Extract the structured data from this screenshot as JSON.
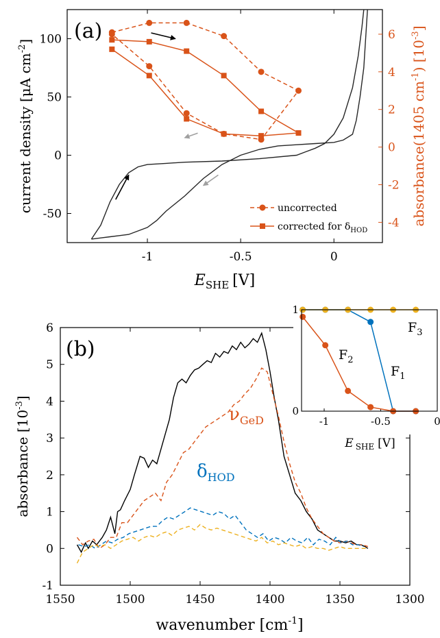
{
  "colors": {
    "axis": "#000000",
    "cv": "#262626",
    "orange": "#d95319",
    "blue": "#0072bd",
    "gold": "#edb120",
    "grey": "#a0a0a0"
  },
  "chart_data": [
    {
      "id": "a",
      "type": "line",
      "panel_label": "(a)",
      "xlabel_main": "E",
      "xlabel_sub": "SHE",
      "xlabel_unit": "[V]",
      "ylabel_left": "current density  [μA cm",
      "ylabel_left_sup": "-2",
      "ylabel_left_end": "]",
      "ylabel_right": "absorbance(1405 cm",
      "ylabel_right_sup1": "-1",
      "ylabel_right_mid": ") [10",
      "ylabel_right_sup2": "-3",
      "ylabel_right_end": "]",
      "xlim": [
        -1.43,
        0.26
      ],
      "ylim_left": [
        -75,
        125
      ],
      "ylim_right": [
        -5.077,
        7.308
      ],
      "xticks": [
        {
          "v": -1,
          "label": "-1"
        },
        {
          "v": -0.5,
          "label": "-0.5"
        },
        {
          "v": 0,
          "label": "0"
        }
      ],
      "yticks_left": [
        {
          "v": -50,
          "label": "-50"
        },
        {
          "v": 0,
          "label": "0"
        },
        {
          "v": 50,
          "label": "50"
        },
        {
          "v": 100,
          "label": "100"
        }
      ],
      "yticks_right": [
        {
          "v": -4,
          "label": "-4"
        },
        {
          "v": -2,
          "label": "-2"
        },
        {
          "v": 0,
          "label": "0"
        },
        {
          "v": 2,
          "label": "2"
        },
        {
          "v": 4,
          "label": "4"
        },
        {
          "v": 6,
          "label": "6"
        }
      ],
      "cv_curve": {
        "anodic": [
          [
            -1.3,
            -72
          ],
          [
            -1.25,
            -60
          ],
          [
            -1.2,
            -40
          ],
          [
            -1.15,
            -25
          ],
          [
            -1.1,
            -15
          ],
          [
            -1.05,
            -10
          ],
          [
            -1.0,
            -8
          ],
          [
            -0.9,
            -7
          ],
          [
            -0.8,
            -6
          ],
          [
            -0.6,
            -5
          ],
          [
            -0.4,
            -3
          ],
          [
            -0.2,
            0
          ],
          [
            -0.15,
            3
          ],
          [
            -0.1,
            6
          ],
          [
            -0.05,
            10
          ],
          [
            0.0,
            18
          ],
          [
            0.05,
            32
          ],
          [
            0.1,
            58
          ],
          [
            0.13,
            85
          ],
          [
            0.15,
            110
          ],
          [
            0.16,
            125
          ]
        ],
        "cathodic": [
          [
            0.18,
            125
          ],
          [
            0.17,
            100
          ],
          [
            0.16,
            75
          ],
          [
            0.14,
            50
          ],
          [
            0.12,
            30
          ],
          [
            0.1,
            18
          ],
          [
            0.05,
            13
          ],
          [
            0.0,
            11
          ],
          [
            -0.1,
            10
          ],
          [
            -0.2,
            9
          ],
          [
            -0.3,
            8
          ],
          [
            -0.4,
            5
          ],
          [
            -0.5,
            0
          ],
          [
            -0.6,
            -8
          ],
          [
            -0.7,
            -20
          ],
          [
            -0.8,
            -35
          ],
          [
            -0.9,
            -48
          ],
          [
            -0.95,
            -56
          ],
          [
            -1.0,
            -62
          ],
          [
            -1.05,
            -65
          ],
          [
            -1.1,
            -68
          ],
          [
            -1.15,
            -69
          ],
          [
            -1.2,
            -70
          ],
          [
            -1.25,
            -71
          ],
          [
            -1.3,
            -72
          ]
        ]
      },
      "series": [
        {
          "name": "uncorrected",
          "style": "dashed",
          "marker": "circle",
          "x": [
            -1.19,
            -0.99,
            -0.79,
            -0.59,
            -0.39,
            -0.19,
            -0.39,
            -0.59,
            -0.79,
            -0.99,
            -1.19
          ],
          "y": [
            6.1,
            6.6,
            6.6,
            5.9,
            4.0,
            3.0,
            0.4,
            0.7,
            1.8,
            4.3,
            6.0
          ]
        },
        {
          "name": "corrected for δ",
          "name_sub": "HOD",
          "style": "solid",
          "marker": "square",
          "x": [
            -1.19,
            -0.99,
            -0.79,
            -0.59,
            -0.39,
            -0.19,
            -0.39,
            -0.59,
            -0.79,
            -0.99,
            -1.19
          ],
          "y": [
            5.7,
            5.6,
            5.1,
            3.8,
            1.9,
            0.75,
            0.6,
            0.7,
            1.5,
            3.8,
            5.2
          ]
        }
      ],
      "legend_position": "bottom-right",
      "arrows": [
        {
          "color": "black",
          "from": [
            -0.98,
            105
          ],
          "to": [
            -0.85,
            100
          ]
        },
        {
          "color": "grey",
          "from": [
            -0.73,
            19
          ],
          "to": [
            -0.8,
            15
          ]
        },
        {
          "color": "black",
          "from": [
            -1.17,
            -38
          ],
          "to": [
            -1.1,
            -17
          ]
        },
        {
          "color": "grey",
          "from": [
            -0.62,
            -17
          ],
          "to": [
            -0.7,
            -26
          ]
        }
      ]
    },
    {
      "id": "b",
      "type": "line",
      "panel_label": "(b)",
      "xlabel": "wavenumber [cm",
      "xlabel_sup": "-1",
      "xlabel_end": "]",
      "ylabel": "absorbance [10",
      "ylabel_sup": "-3",
      "ylabel_end": "]",
      "xlim": [
        1550,
        1300
      ],
      "ylim": [
        -1,
        6
      ],
      "xticks": [
        {
          "v": 1550,
          "label": "1550"
        },
        {
          "v": 1500,
          "label": "1500"
        },
        {
          "v": 1450,
          "label": "1450"
        },
        {
          "v": 1400,
          "label": "1400"
        },
        {
          "v": 1350,
          "label": "1350"
        },
        {
          "v": 1300,
          "label": "1300"
        }
      ],
      "yticks": [
        {
          "v": -1,
          "label": "-1"
        },
        {
          "v": 0,
          "label": "0"
        },
        {
          "v": 1,
          "label": "1"
        },
        {
          "v": 2,
          "label": "2"
        },
        {
          "v": 3,
          "label": "3"
        },
        {
          "v": 4,
          "label": "4"
        },
        {
          "v": 5,
          "label": "5"
        },
        {
          "v": 6,
          "label": "6"
        }
      ],
      "annotations": {
        "nu_main": "ν",
        "nu_sub": "GeD",
        "delta_main": "δ",
        "delta_sub": "HOD"
      },
      "series": [
        {
          "color": "black",
          "style": "solid",
          "x": [
            1538,
            1535,
            1532,
            1530,
            1527,
            1524,
            1520,
            1517,
            1514,
            1511,
            1509,
            1507,
            1504,
            1500,
            1497,
            1493,
            1490,
            1487,
            1484,
            1481,
            1478,
            1475,
            1472,
            1469,
            1466,
            1463,
            1460,
            1457,
            1454,
            1451,
            1448,
            1445,
            1442,
            1439,
            1436,
            1433,
            1430,
            1427,
            1424,
            1421,
            1418,
            1415,
            1412,
            1409,
            1406,
            1403,
            1400,
            1397,
            1394,
            1390,
            1386,
            1382,
            1378,
            1374,
            1370,
            1366,
            1362,
            1358,
            1354,
            1350,
            1346,
            1342,
            1338,
            1335,
            1332,
            1330
          ],
          "y": [
            0.1,
            -0.1,
            0.15,
            0.0,
            0.2,
            0.1,
            0.3,
            0.5,
            0.85,
            0.4,
            1.0,
            1.05,
            1.3,
            1.6,
            2.0,
            2.5,
            2.45,
            2.2,
            2.4,
            2.3,
            2.7,
            3.1,
            3.5,
            4.1,
            4.5,
            4.6,
            4.5,
            4.7,
            4.85,
            4.9,
            5.0,
            5.1,
            5.05,
            5.3,
            5.2,
            5.35,
            5.3,
            5.5,
            5.4,
            5.6,
            5.45,
            5.55,
            5.7,
            5.6,
            5.85,
            5.4,
            4.8,
            4.1,
            3.5,
            2.5,
            2.0,
            1.5,
            1.3,
            1.0,
            0.8,
            0.5,
            0.4,
            0.3,
            0.2,
            0.2,
            0.15,
            0.2,
            0.1,
            0.1,
            0.05,
            0.0
          ]
        },
        {
          "color": "orange",
          "style": "dashed",
          "x": [
            1538,
            1534,
            1530,
            1526,
            1522,
            1518,
            1514,
            1510,
            1506,
            1502,
            1498,
            1494,
            1490,
            1486,
            1482,
            1478,
            1474,
            1470,
            1466,
            1462,
            1458,
            1454,
            1450,
            1446,
            1442,
            1438,
            1434,
            1430,
            1426,
            1422,
            1418,
            1414,
            1410,
            1406,
            1402,
            1398,
            1394,
            1390,
            1386,
            1382,
            1378,
            1374,
            1370,
            1366,
            1362,
            1358,
            1354,
            1350,
            1346,
            1342,
            1338,
            1334,
            1330
          ],
          "y": [
            0.3,
            0.1,
            0.2,
            0.25,
            0.0,
            0.1,
            0.3,
            0.3,
            0.7,
            0.7,
            0.9,
            1.1,
            1.3,
            1.4,
            1.5,
            1.3,
            1.8,
            2.0,
            2.3,
            2.6,
            2.7,
            2.9,
            3.1,
            3.3,
            3.4,
            3.5,
            3.6,
            3.7,
            3.9,
            4.0,
            4.2,
            4.35,
            4.6,
            4.9,
            4.8,
            4.2,
            3.6,
            2.9,
            2.3,
            1.8,
            1.5,
            1.1,
            0.8,
            0.6,
            0.4,
            0.3,
            0.2,
            0.15,
            0.2,
            0.15,
            0.1,
            0.1,
            0.05
          ]
        },
        {
          "color": "blue",
          "style": "dashed",
          "x": [
            1537,
            1533,
            1529,
            1525,
            1521,
            1517,
            1513,
            1509,
            1505,
            1501,
            1497,
            1493,
            1489,
            1485,
            1481,
            1477,
            1473,
            1469,
            1465,
            1461,
            1457,
            1453,
            1449,
            1445,
            1441,
            1437,
            1433,
            1429,
            1425,
            1421,
            1417,
            1413,
            1409,
            1405,
            1401,
            1397,
            1393,
            1389,
            1385,
            1381,
            1377,
            1373,
            1369,
            1365,
            1361,
            1357,
            1353,
            1349,
            1345,
            1341,
            1337,
            1333
          ],
          "y": [
            0.1,
            0.05,
            0.1,
            0.0,
            0.1,
            0.2,
            0.15,
            0.25,
            0.3,
            0.4,
            0.45,
            0.5,
            0.55,
            0.6,
            0.6,
            0.75,
            0.85,
            0.8,
            0.9,
            1.0,
            1.1,
            1.05,
            1.0,
            0.95,
            0.9,
            1.0,
            0.95,
            0.8,
            0.9,
            0.7,
            0.5,
            0.4,
            0.3,
            0.4,
            0.2,
            0.3,
            0.25,
            0.15,
            0.3,
            0.2,
            0.15,
            0.3,
            0.1,
            0.25,
            0.2,
            0.1,
            0.3,
            0.15,
            0.2,
            0.1,
            0.1,
            0.05
          ]
        },
        {
          "color": "gold",
          "style": "dashed",
          "x": [
            1538,
            1534,
            1530,
            1526,
            1522,
            1518,
            1514,
            1510,
            1506,
            1502,
            1498,
            1494,
            1490,
            1486,
            1482,
            1478,
            1474,
            1470,
            1466,
            1462,
            1458,
            1454,
            1450,
            1446,
            1442,
            1438,
            1434,
            1430,
            1426,
            1422,
            1418,
            1414,
            1410,
            1406,
            1402,
            1398,
            1394,
            1390,
            1386,
            1382,
            1378,
            1374,
            1370,
            1366,
            1362,
            1358,
            1354,
            1350,
            1346,
            1342,
            1338,
            1334,
            1330
          ],
          "y": [
            -0.4,
            -0.1,
            0.0,
            0.1,
            0.05,
            0.1,
            0.0,
            0.1,
            0.2,
            0.25,
            0.3,
            0.2,
            0.3,
            0.35,
            0.3,
            0.4,
            0.45,
            0.35,
            0.5,
            0.55,
            0.6,
            0.5,
            0.65,
            0.55,
            0.5,
            0.55,
            0.5,
            0.45,
            0.4,
            0.35,
            0.3,
            0.25,
            0.2,
            0.3,
            0.15,
            0.2,
            0.1,
            0.15,
            0.1,
            0.05,
            0.1,
            0.0,
            0.05,
            0.0,
            0.0,
            -0.05,
            0.0,
            0.05,
            0.0,
            0.0,
            0.0,
            0.0,
            0.0
          ]
        }
      ]
    },
    {
      "id": "inset",
      "type": "line",
      "xlabel_main": "E",
      "xlabel_sub": "SHE",
      "xlabel_unit": "[V]",
      "xlim": [
        -1.2,
        0.0
      ],
      "ylim": [
        0,
        1
      ],
      "xticks": [
        {
          "v": -1,
          "label": "-1"
        },
        {
          "v": -0.5,
          "label": "-0.5"
        },
        {
          "v": 0,
          "label": "0"
        }
      ],
      "yticks": [
        {
          "v": 0,
          "label": "0"
        },
        {
          "v": 1,
          "label": "1"
        }
      ],
      "series": [
        {
          "name": "F",
          "name_sub": "1",
          "color": "blue",
          "x": [
            -1.19,
            -0.99,
            -0.79,
            -0.59,
            -0.39,
            -0.19
          ],
          "y": [
            1,
            1,
            1,
            0.88,
            0,
            0
          ]
        },
        {
          "name": "F",
          "name_sub": "2",
          "color": "orange",
          "x": [
            -1.19,
            -0.99,
            -0.79,
            -0.59,
            -0.39,
            -0.19
          ],
          "y": [
            0.93,
            0.65,
            0.2,
            0.04,
            0,
            0
          ]
        },
        {
          "name": "F",
          "name_sub": "3",
          "color": "gold",
          "x": [
            -1.19,
            -0.99,
            -0.79,
            -0.59,
            -0.39,
            -0.19
          ],
          "y": [
            1,
            1,
            1,
            1,
            1,
            1
          ]
        }
      ]
    }
  ]
}
